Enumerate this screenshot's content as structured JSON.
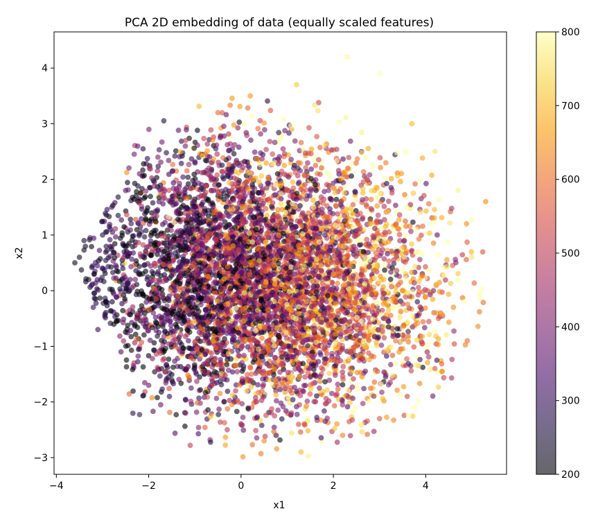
{
  "chart_data": {
    "type": "scatter",
    "title": "PCA 2D embedding of data (equally scaled features)",
    "xlabel": "x1",
    "ylabel": "x2",
    "xlim": [
      -4.05,
      5.75
    ],
    "ylim": [
      -3.3,
      4.65
    ],
    "xticks": [
      -4,
      -2,
      0,
      2,
      4
    ],
    "xtick_labels": [
      "−4",
      "−2",
      "0",
      "2",
      "4"
    ],
    "yticks": [
      -3,
      -2,
      -1,
      0,
      1,
      2,
      3,
      4
    ],
    "ytick_labels": [
      "−3",
      "−2",
      "−1",
      "0",
      "1",
      "2",
      "3",
      "4"
    ],
    "grid": false,
    "marker_alpha": 0.6,
    "colormap": {
      "name": "inferno",
      "vmin": 200,
      "vmax": 800,
      "ticks": [
        200,
        300,
        400,
        500,
        600,
        700,
        800
      ],
      "tick_labels": [
        "200",
        "300",
        "400",
        "500",
        "600",
        "700",
        "800"
      ],
      "stops": [
        "#000004",
        "#1b0c41",
        "#4a0c6b",
        "#781c6d",
        "#a52c60",
        "#cf4446",
        "#ed6925",
        "#fb9b06",
        "#f7d13d",
        "#fcffa4"
      ]
    },
    "point_count_approx": 6000,
    "points": [
      [
        -3.5,
        0.6,
        240
      ],
      [
        -3.4,
        0.9,
        260
      ],
      [
        -3.3,
        0.2,
        250
      ],
      [
        -3.6,
        0.5,
        230
      ],
      [
        -3.2,
        -0.3,
        300
      ],
      [
        -3.0,
        1.0,
        280
      ],
      [
        -2.8,
        1.5,
        320
      ],
      [
        -2.5,
        1.8,
        350
      ],
      [
        -2.2,
        2.1,
        380
      ],
      [
        -1.8,
        2.4,
        400
      ],
      [
        -1.2,
        2.7,
        520
      ],
      [
        -0.5,
        3.2,
        600
      ],
      [
        0.2,
        3.5,
        650
      ],
      [
        1.2,
        3.7,
        720
      ],
      [
        2.3,
        4.2,
        790
      ],
      [
        3.0,
        3.9,
        800
      ],
      [
        3.7,
        3.0,
        700
      ],
      [
        4.2,
        2.5,
        760
      ],
      [
        4.7,
        1.8,
        780
      ],
      [
        5.3,
        1.6,
        640
      ],
      [
        5.0,
        0.6,
        760
      ],
      [
        4.6,
        -0.3,
        640
      ],
      [
        4.9,
        -0.9,
        600
      ],
      [
        4.2,
        -1.4,
        560
      ],
      [
        3.6,
        -1.9,
        520
      ],
      [
        3.0,
        -2.3,
        560
      ],
      [
        2.2,
        -2.6,
        620
      ],
      [
        1.3,
        -2.9,
        700
      ],
      [
        0.5,
        -2.7,
        640
      ],
      [
        -0.3,
        -2.5,
        500
      ],
      [
        -1.2,
        -2.2,
        420
      ],
      [
        -2.0,
        -1.7,
        380
      ],
      [
        -2.6,
        -1.1,
        340
      ],
      [
        -3.1,
        -0.7,
        300
      ],
      [
        -2.4,
        0.2,
        330
      ],
      [
        -1.5,
        0.8,
        400
      ],
      [
        -0.6,
        1.2,
        480
      ],
      [
        0.3,
        0.5,
        560
      ],
      [
        1.1,
        -0.2,
        620
      ],
      [
        2.0,
        0.3,
        680
      ],
      [
        2.8,
        1.2,
        720
      ],
      [
        3.5,
        0.0,
        620
      ],
      [
        1.0,
        1.8,
        560
      ],
      [
        -0.8,
        -0.9,
        460
      ],
      [
        0.6,
        -1.6,
        700
      ],
      [
        2.5,
        -1.0,
        600
      ],
      [
        -1.9,
        -0.4,
        380
      ],
      [
        1.8,
        2.6,
        760
      ]
    ]
  }
}
